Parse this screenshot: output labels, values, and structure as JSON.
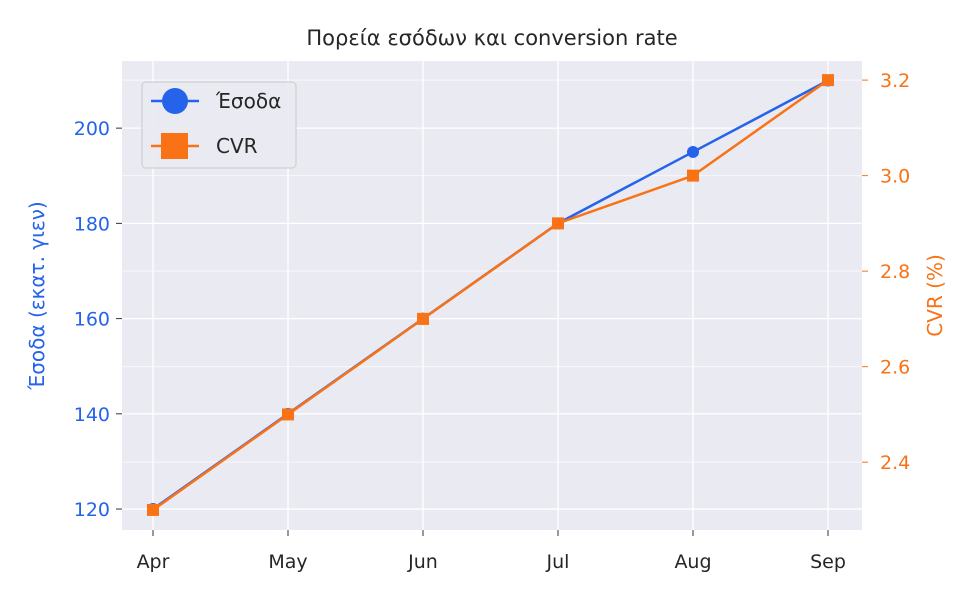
{
  "chart_data": {
    "type": "line",
    "title": "Πορεία εσόδων και conversion rate",
    "categories": [
      "Apr",
      "May",
      "Jun",
      "Jul",
      "Aug",
      "Sep"
    ],
    "series": [
      {
        "name": "Έσοδα",
        "axis": "left",
        "values": [
          120,
          140,
          160,
          180,
          195,
          210
        ],
        "color": "#2563eb",
        "marker": "circle"
      },
      {
        "name": "CVR",
        "axis": "right",
        "values": [
          2.3,
          2.5,
          2.7,
          2.9,
          3.0,
          3.2
        ],
        "color": "#f97316",
        "marker": "square"
      }
    ],
    "ylabel_left": "Έσοδα (εκατ. γιεν)",
    "ylabel_right": "CVR (%)",
    "yticks_left": [
      120,
      140,
      160,
      180,
      200
    ],
    "yticks_right": [
      2.4,
      2.6,
      2.8,
      3.0,
      3.2
    ],
    "yticks_right_labels": [
      "2.4",
      "2.6",
      "2.8",
      "3.0",
      "3.2"
    ],
    "ylim_left": [
      115.6,
      214.1
    ],
    "ylim_right": [
      2.258,
      3.24
    ],
    "grid": true,
    "legend_position": "top-left",
    "background": "#eaeaf2"
  }
}
